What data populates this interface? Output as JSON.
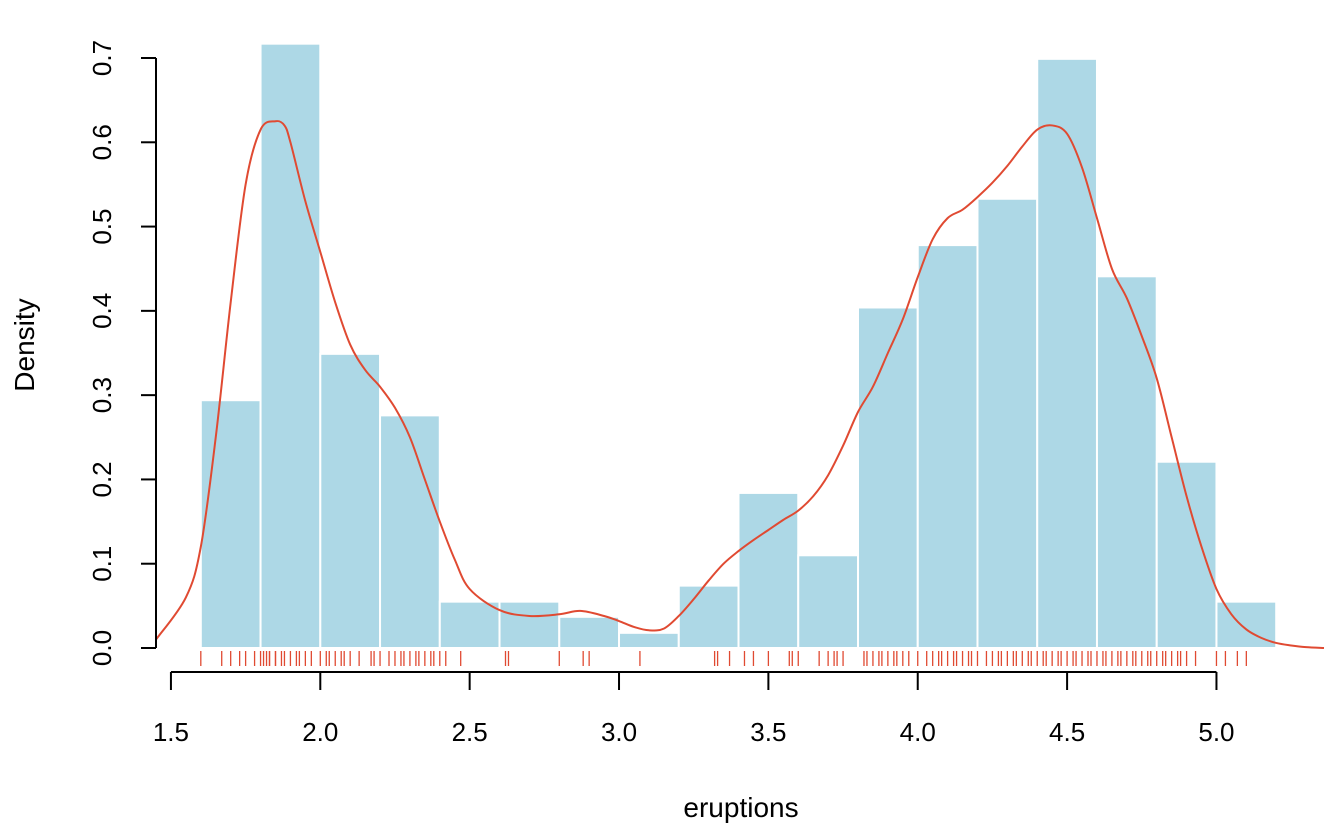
{
  "chart_data": {
    "type": "bar",
    "title": "",
    "xlabel": "eruptions",
    "ylabel": "Density",
    "xlim": [
      1.45,
      5.36
    ],
    "ylim": [
      0,
      0.7
    ],
    "x_ticks": [
      1.5,
      2.0,
      2.5,
      3.0,
      3.5,
      4.0,
      4.5,
      5.0
    ],
    "x_tick_labels": [
      "1.5",
      "2.0",
      "2.5",
      "3.0",
      "3.5",
      "4.0",
      "4.5",
      "5.0"
    ],
    "y_ticks": [
      0.0,
      0.1,
      0.2,
      0.3,
      0.4,
      0.5,
      0.6,
      0.7
    ],
    "y_tick_labels": [
      "0.0",
      "0.1",
      "0.2",
      "0.3",
      "0.4",
      "0.5",
      "0.6",
      "0.7"
    ],
    "grid": false,
    "legend": "none",
    "histogram": {
      "bin_edges": [
        1.6,
        1.8,
        2.0,
        2.2,
        2.4,
        2.6,
        2.8,
        3.0,
        3.2,
        3.4,
        3.6,
        3.8,
        4.0,
        4.2,
        4.4,
        4.6,
        4.8,
        5.0,
        5.2
      ],
      "density": [
        0.294,
        0.717,
        0.349,
        0.276,
        0.055,
        0.055,
        0.037,
        0.018,
        0.074,
        0.184,
        0.11,
        0.404,
        0.478,
        0.533,
        0.699,
        0.441,
        0.221,
        0.055
      ],
      "fill": "#add8e6",
      "edge": "#ffffff"
    },
    "density_curve": {
      "color": "#e04a32",
      "x": [
        1.45,
        1.55,
        1.6,
        1.65,
        1.7,
        1.75,
        1.8,
        1.85,
        1.88,
        1.9,
        1.95,
        2.0,
        2.05,
        2.1,
        2.15,
        2.2,
        2.25,
        2.3,
        2.35,
        2.4,
        2.45,
        2.5,
        2.6,
        2.7,
        2.8,
        2.87,
        2.95,
        3.0,
        3.05,
        3.1,
        3.15,
        3.2,
        3.25,
        3.3,
        3.35,
        3.4,
        3.45,
        3.5,
        3.55,
        3.6,
        3.65,
        3.7,
        3.75,
        3.8,
        3.85,
        3.9,
        3.95,
        4.0,
        4.05,
        4.1,
        4.15,
        4.2,
        4.25,
        4.3,
        4.35,
        4.4,
        4.45,
        4.5,
        4.55,
        4.6,
        4.65,
        4.7,
        4.75,
        4.8,
        4.85,
        4.9,
        4.95,
        5.0,
        5.05,
        5.1,
        5.15,
        5.2,
        5.25,
        5.3,
        5.36
      ],
      "y": [
        0.01,
        0.06,
        0.12,
        0.25,
        0.41,
        0.55,
        0.615,
        0.625,
        0.62,
        0.6,
        0.53,
        0.47,
        0.41,
        0.36,
        0.33,
        0.31,
        0.285,
        0.25,
        0.2,
        0.15,
        0.105,
        0.07,
        0.045,
        0.038,
        0.04,
        0.044,
        0.038,
        0.032,
        0.025,
        0.021,
        0.023,
        0.038,
        0.058,
        0.08,
        0.1,
        0.115,
        0.128,
        0.14,
        0.152,
        0.163,
        0.18,
        0.205,
        0.24,
        0.28,
        0.31,
        0.35,
        0.39,
        0.44,
        0.485,
        0.51,
        0.52,
        0.535,
        0.552,
        0.572,
        0.595,
        0.615,
        0.62,
        0.61,
        0.57,
        0.51,
        0.45,
        0.415,
        0.37,
        0.32,
        0.25,
        0.18,
        0.12,
        0.07,
        0.04,
        0.022,
        0.012,
        0.006,
        0.003,
        0.001,
        0.0
      ]
    },
    "rug": {
      "color": "#e04a32",
      "values": [
        1.6,
        1.67,
        1.7,
        1.73,
        1.75,
        1.78,
        1.8,
        1.81,
        1.82,
        1.83,
        1.83,
        1.85,
        1.85,
        1.87,
        1.88,
        1.9,
        1.92,
        1.93,
        1.95,
        1.97,
        2.0,
        2.02,
        2.03,
        2.05,
        2.07,
        2.08,
        2.1,
        2.13,
        2.17,
        2.18,
        2.2,
        2.23,
        2.25,
        2.27,
        2.28,
        2.3,
        2.32,
        2.33,
        2.35,
        2.37,
        2.38,
        2.4,
        2.42,
        2.47,
        2.62,
        2.63,
        2.8,
        2.88,
        2.9,
        3.07,
        3.32,
        3.33,
        3.37,
        3.42,
        3.45,
        3.5,
        3.57,
        3.58,
        3.6,
        3.67,
        3.7,
        3.72,
        3.73,
        3.75,
        3.82,
        3.83,
        3.85,
        3.87,
        3.88,
        3.9,
        3.92,
        3.93,
        3.95,
        3.97,
        4.0,
        4.03,
        4.05,
        4.07,
        4.08,
        4.1,
        4.12,
        4.13,
        4.15,
        4.17,
        4.18,
        4.2,
        4.23,
        4.25,
        4.27,
        4.28,
        4.3,
        4.32,
        4.33,
        4.35,
        4.37,
        4.38,
        4.4,
        4.42,
        4.43,
        4.45,
        4.47,
        4.48,
        4.5,
        4.52,
        4.53,
        4.55,
        4.57,
        4.58,
        4.6,
        4.62,
        4.63,
        4.65,
        4.67,
        4.68,
        4.7,
        4.72,
        4.73,
        4.75,
        4.77,
        4.78,
        4.8,
        4.82,
        4.83,
        4.85,
        4.87,
        4.88,
        4.9,
        4.93,
        5.0,
        5.03,
        5.07,
        5.1
      ]
    }
  }
}
